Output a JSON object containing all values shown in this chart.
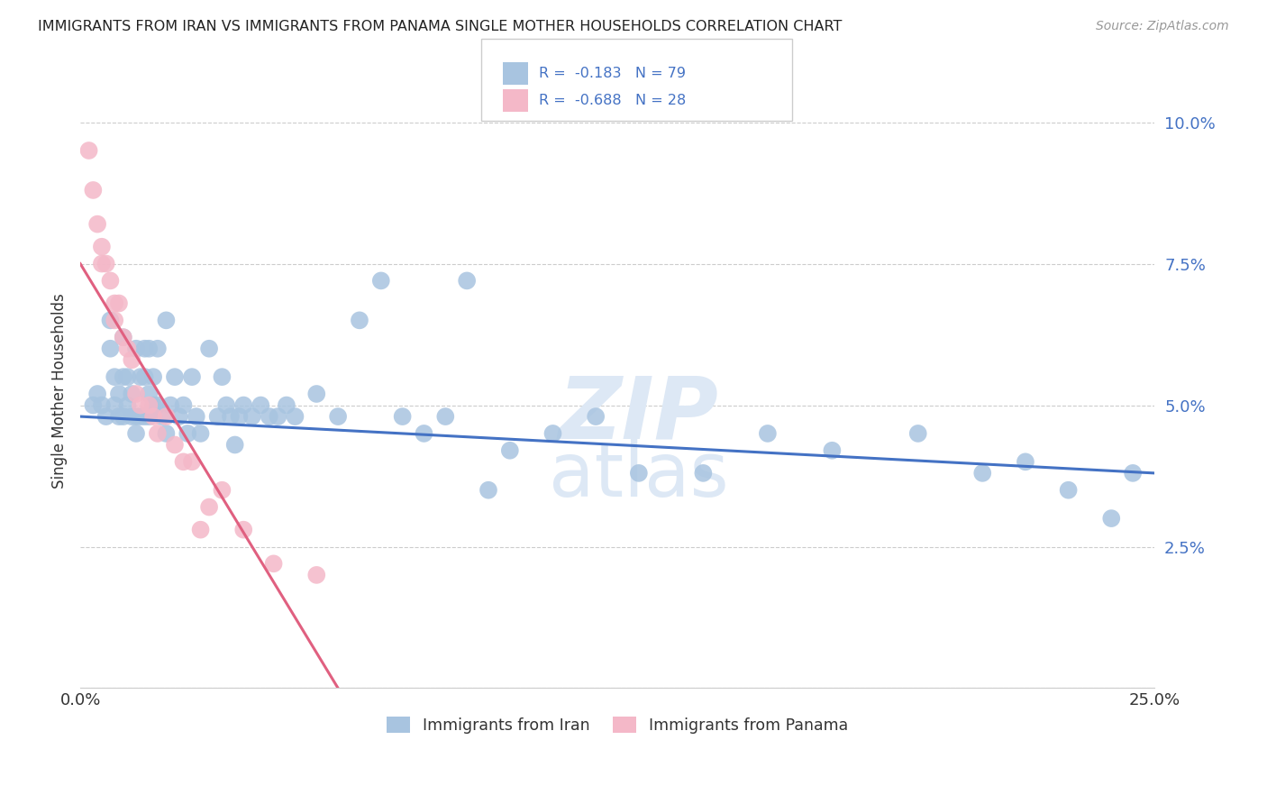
{
  "title": "IMMIGRANTS FROM IRAN VS IMMIGRANTS FROM PANAMA SINGLE MOTHER HOUSEHOLDS CORRELATION CHART",
  "source": "Source: ZipAtlas.com",
  "ylabel": "Single Mother Households",
  "legend_label_1": "Immigrants from Iran",
  "legend_label_2": "Immigrants from Panama",
  "color_iran": "#a8c4e0",
  "color_panama": "#f4b8c8",
  "color_iran_line": "#4472c4",
  "color_panama_line": "#e06080",
  "color_title": "#222222",
  "color_source": "#999999",
  "color_axis_text": "#4472c4",
  "xlim": [
    0.0,
    0.25
  ],
  "ylim": [
    0.0,
    0.105
  ],
  "yticks": [
    0.0,
    0.025,
    0.05,
    0.075,
    0.1
  ],
  "ytick_labels": [
    "",
    "2.5%",
    "5.0%",
    "7.5%",
    "10.0%"
  ],
  "xticks": [
    0.0,
    0.05,
    0.1,
    0.15,
    0.2,
    0.25
  ],
  "xtick_labels": [
    "0.0%",
    "",
    "",
    "",
    "",
    "25.0%"
  ],
  "iran_x": [
    0.003,
    0.004,
    0.005,
    0.006,
    0.007,
    0.007,
    0.008,
    0.008,
    0.009,
    0.009,
    0.01,
    0.01,
    0.01,
    0.011,
    0.011,
    0.012,
    0.012,
    0.013,
    0.013,
    0.013,
    0.014,
    0.014,
    0.015,
    0.015,
    0.015,
    0.016,
    0.016,
    0.016,
    0.017,
    0.017,
    0.018,
    0.018,
    0.019,
    0.02,
    0.02,
    0.021,
    0.022,
    0.023,
    0.024,
    0.025,
    0.026,
    0.027,
    0.028,
    0.03,
    0.032,
    0.033,
    0.034,
    0.035,
    0.036,
    0.037,
    0.038,
    0.04,
    0.042,
    0.044,
    0.046,
    0.048,
    0.05,
    0.055,
    0.06,
    0.065,
    0.07,
    0.075,
    0.08,
    0.085,
    0.09,
    0.095,
    0.1,
    0.11,
    0.12,
    0.13,
    0.145,
    0.16,
    0.175,
    0.195,
    0.21,
    0.22,
    0.23,
    0.24,
    0.245
  ],
  "iran_y": [
    0.05,
    0.052,
    0.05,
    0.048,
    0.06,
    0.065,
    0.05,
    0.055,
    0.048,
    0.052,
    0.048,
    0.055,
    0.062,
    0.05,
    0.055,
    0.048,
    0.052,
    0.048,
    0.045,
    0.06,
    0.048,
    0.055,
    0.048,
    0.055,
    0.06,
    0.048,
    0.052,
    0.06,
    0.05,
    0.055,
    0.05,
    0.06,
    0.048,
    0.045,
    0.065,
    0.05,
    0.055,
    0.048,
    0.05,
    0.045,
    0.055,
    0.048,
    0.045,
    0.06,
    0.048,
    0.055,
    0.05,
    0.048,
    0.043,
    0.048,
    0.05,
    0.048,
    0.05,
    0.048,
    0.048,
    0.05,
    0.048,
    0.052,
    0.048,
    0.065,
    0.072,
    0.048,
    0.045,
    0.048,
    0.072,
    0.035,
    0.042,
    0.045,
    0.048,
    0.038,
    0.038,
    0.045,
    0.042,
    0.045,
    0.038,
    0.04,
    0.035,
    0.03,
    0.038
  ],
  "panama_x": [
    0.002,
    0.003,
    0.004,
    0.005,
    0.005,
    0.006,
    0.007,
    0.008,
    0.008,
    0.009,
    0.01,
    0.011,
    0.012,
    0.013,
    0.014,
    0.016,
    0.017,
    0.018,
    0.02,
    0.022,
    0.024,
    0.026,
    0.028,
    0.03,
    0.033,
    0.038,
    0.045,
    0.055
  ],
  "panama_y": [
    0.095,
    0.088,
    0.082,
    0.078,
    0.075,
    0.075,
    0.072,
    0.068,
    0.065,
    0.068,
    0.062,
    0.06,
    0.058,
    0.052,
    0.05,
    0.05,
    0.048,
    0.045,
    0.048,
    0.043,
    0.04,
    0.04,
    0.028,
    0.032,
    0.035,
    0.028,
    0.022,
    0.02
  ],
  "watermark_zip": "ZIP",
  "watermark_atlas": "atlas",
  "watermark_color": "#dde8f5",
  "watermark_fontsize": 70
}
